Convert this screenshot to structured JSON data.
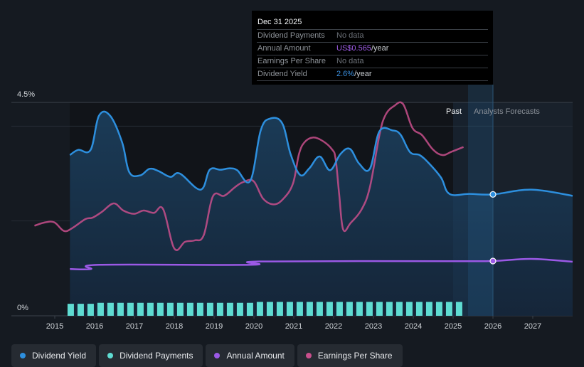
{
  "tooltip": {
    "date": "Dec 31 2025",
    "rows": [
      {
        "label": "Dividend Payments",
        "value": "No data",
        "unit": ""
      },
      {
        "label": "Annual Amount",
        "value": "US$0.565",
        "unit": "/year"
      },
      {
        "label": "Earnings Per Share",
        "value": "No data",
        "unit": ""
      },
      {
        "label": "Dividend Yield",
        "value": "2.6%",
        "unit": "/year"
      }
    ]
  },
  "regions": {
    "past_label": "Past",
    "forecast_label": "Analysts Forecasts"
  },
  "legend": [
    {
      "label": "Dividend Yield",
      "color": "#2d8fde"
    },
    {
      "label": "Dividend Payments",
      "color": "#5fdcd2"
    },
    {
      "label": "Annual Amount",
      "color": "#9b59e6"
    },
    {
      "label": "Earnings Per Share",
      "color": "#c94f8c"
    }
  ],
  "chart_data": {
    "type": "line",
    "title": "",
    "xlabel": "",
    "ylabel": "",
    "xlim": [
      2013.9,
      2028.0
    ],
    "ylim": [
      0,
      4.5
    ],
    "y_tick_labels": [
      "0%",
      "4.5%"
    ],
    "y_gridlines": [
      0,
      2,
      4,
      4.5
    ],
    "x_tick_labels": [
      "2015",
      "2016",
      "2017",
      "2018",
      "2019",
      "2020",
      "2021",
      "2022",
      "2023",
      "2024",
      "2025",
      "2026",
      "2027"
    ],
    "grid": true,
    "legend_position": "bottom",
    "past_end": 2025.0,
    "hover_x": 2026.0,
    "series": [
      {
        "name": "Dividend Yield",
        "unit": "%",
        "color": "#2d8fde",
        "fill": true,
        "points": [
          [
            2015.38,
            3.39
          ],
          [
            2015.59,
            3.5
          ],
          [
            2015.9,
            3.5
          ],
          [
            2016.11,
            4.22
          ],
          [
            2016.39,
            4.22
          ],
          [
            2016.69,
            3.66
          ],
          [
            2016.87,
            3.03
          ],
          [
            2017.14,
            2.96
          ],
          [
            2017.38,
            3.1
          ],
          [
            2017.61,
            3.05
          ],
          [
            2017.9,
            2.93
          ],
          [
            2018.14,
            3.0
          ],
          [
            2018.66,
            2.66
          ],
          [
            2018.89,
            3.08
          ],
          [
            2019.16,
            3.08
          ],
          [
            2019.4,
            3.11
          ],
          [
            2019.58,
            3.07
          ],
          [
            2019.91,
            2.85
          ],
          [
            2020.17,
            3.91
          ],
          [
            2020.41,
            4.16
          ],
          [
            2020.71,
            4.06
          ],
          [
            2020.92,
            3.41
          ],
          [
            2021.16,
            2.97
          ],
          [
            2021.39,
            3.11
          ],
          [
            2021.65,
            3.36
          ],
          [
            2021.91,
            3.07
          ],
          [
            2022.17,
            3.41
          ],
          [
            2022.41,
            3.52
          ],
          [
            2022.64,
            3.21
          ],
          [
            2022.91,
            3.1
          ],
          [
            2023.15,
            3.89
          ],
          [
            2023.48,
            3.91
          ],
          [
            2023.68,
            3.82
          ],
          [
            2023.92,
            3.45
          ],
          [
            2024.16,
            3.39
          ],
          [
            2024.4,
            3.21
          ],
          [
            2024.7,
            2.91
          ],
          [
            2024.91,
            2.57
          ],
          [
            2025.41,
            2.57
          ],
          [
            2026.0,
            2.56
          ],
          [
            2026.96,
            2.66
          ],
          [
            2028.0,
            2.53
          ]
        ]
      },
      {
        "name": "Annual Amount",
        "unit": "US$",
        "color": "#9b59e6",
        "points": [
          [
            2015.38,
            0.482
          ],
          [
            2015.9,
            0.482
          ],
          [
            2016.13,
            0.526
          ],
          [
            2019.93,
            0.526
          ],
          [
            2020.14,
            0.56
          ],
          [
            2025.0,
            0.563
          ],
          [
            2026.0,
            0.565
          ],
          [
            2026.96,
            0.587
          ],
          [
            2028.0,
            0.558
          ]
        ]
      },
      {
        "name": "Earnings Per Share",
        "unit": "relative (unlabeled axis)",
        "color": "#c94f8c",
        "points": [
          [
            2014.49,
            1.9
          ],
          [
            2014.76,
            1.97
          ],
          [
            2014.99,
            1.97
          ],
          [
            2015.23,
            1.79
          ],
          [
            2015.44,
            1.85
          ],
          [
            2015.77,
            2.04
          ],
          [
            2015.95,
            2.07
          ],
          [
            2016.18,
            2.19
          ],
          [
            2016.48,
            2.37
          ],
          [
            2016.72,
            2.22
          ],
          [
            2016.99,
            2.15
          ],
          [
            2017.23,
            2.22
          ],
          [
            2017.49,
            2.17
          ],
          [
            2017.72,
            2.25
          ],
          [
            2018.0,
            1.42
          ],
          [
            2018.27,
            1.56
          ],
          [
            2018.51,
            1.59
          ],
          [
            2018.74,
            1.7
          ],
          [
            2018.97,
            2.52
          ],
          [
            2019.25,
            2.53
          ],
          [
            2019.52,
            2.71
          ],
          [
            2019.73,
            2.82
          ],
          [
            2019.99,
            2.84
          ],
          [
            2020.23,
            2.47
          ],
          [
            2020.5,
            2.35
          ],
          [
            2020.74,
            2.47
          ],
          [
            2020.98,
            2.79
          ],
          [
            2021.13,
            3.41
          ],
          [
            2021.27,
            3.66
          ],
          [
            2021.48,
            3.76
          ],
          [
            2021.72,
            3.69
          ],
          [
            2021.96,
            3.51
          ],
          [
            2022.05,
            3.31
          ],
          [
            2022.14,
            2.56
          ],
          [
            2022.24,
            1.82
          ],
          [
            2022.43,
            1.96
          ],
          [
            2022.7,
            2.24
          ],
          [
            2022.91,
            2.71
          ],
          [
            2023.15,
            3.81
          ],
          [
            2023.3,
            4.23
          ],
          [
            2023.51,
            4.42
          ],
          [
            2023.74,
            4.47
          ],
          [
            2023.98,
            3.96
          ],
          [
            2024.22,
            3.81
          ],
          [
            2024.49,
            3.51
          ],
          [
            2024.73,
            3.39
          ],
          [
            2024.96,
            3.46
          ],
          [
            2025.26,
            3.56
          ]
        ]
      },
      {
        "name": "Dividend Payments",
        "unit": "US$ per quarter",
        "color": "#5fdcd2",
        "type": "bar",
        "start": 2015.32,
        "step_years": 0.25,
        "values": [
          0.121,
          0.121,
          0.121,
          0.131,
          0.131,
          0.131,
          0.131,
          0.131,
          0.131,
          0.131,
          0.131,
          0.131,
          0.131,
          0.131,
          0.131,
          0.131,
          0.131,
          0.131,
          0.131,
          0.14,
          0.14,
          0.14,
          0.14,
          0.14,
          0.14,
          0.14,
          0.14,
          0.14,
          0.14,
          0.14,
          0.14,
          0.14,
          0.14,
          0.14,
          0.14,
          0.14,
          0.14,
          0.14,
          0.14,
          0.14
        ]
      }
    ]
  }
}
